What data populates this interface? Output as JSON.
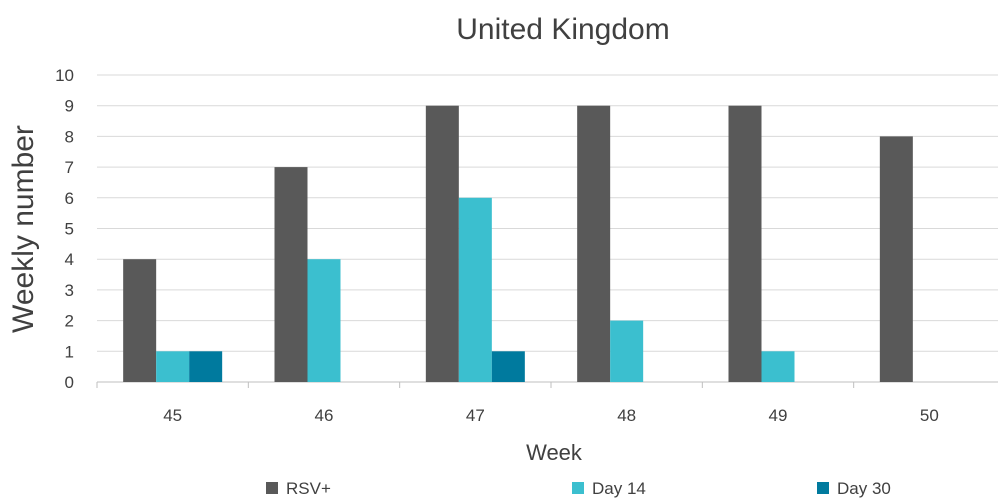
{
  "chart_data": {
    "type": "bar",
    "title": "United Kingdom",
    "xlabel": "Week",
    "ylabel": "Weekly number",
    "categories": [
      "45",
      "46",
      "47",
      "48",
      "49",
      "50"
    ],
    "series": [
      {
        "name": "RSV+",
        "color": "#595959",
        "values": [
          4,
          7,
          9,
          9,
          9,
          8
        ]
      },
      {
        "name": "Day 14",
        "color": "#3bbfcf",
        "values": [
          1,
          4,
          6,
          2,
          1,
          0
        ]
      },
      {
        "name": "Day 30",
        "color": "#007a9e",
        "values": [
          1,
          0,
          1,
          0,
          0,
          0
        ]
      }
    ],
    "ylim": [
      0,
      10
    ],
    "yticks": [
      "0",
      "1",
      "2",
      "3",
      "4",
      "5",
      "6",
      "7",
      "8",
      "9",
      "10"
    ],
    "grid": true,
    "legend": "bottom"
  }
}
